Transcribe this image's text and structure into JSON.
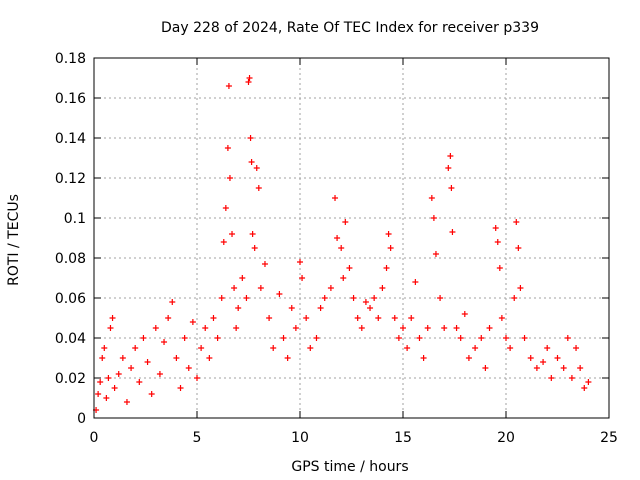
{
  "chart_data": {
    "type": "scatter",
    "title": "Day 228 of 2024, Rate Of TEC Index for receiver p339",
    "xlabel": "GPS time / hours",
    "ylabel": "ROTI / TECUs",
    "xlim": [
      0,
      25
    ],
    "ylim": [
      0,
      0.18
    ],
    "x_ticks": [
      0,
      5,
      10,
      15,
      20,
      25
    ],
    "y_ticks": [
      0,
      0.02,
      0.04,
      0.06,
      0.08,
      0.1,
      0.12,
      0.14,
      0.16,
      0.18
    ],
    "x_tick_labels": [
      "0",
      "5",
      "10",
      "15",
      "20",
      "25"
    ],
    "y_tick_labels": [
      "0",
      "0.02",
      "0.04",
      "0.06",
      "0.08",
      "0.1",
      "0.12",
      "0.14",
      "0.16",
      "0.18"
    ],
    "grid": true,
    "marker": "plus",
    "color": "#ff0000",
    "series": [
      {
        "points": [
          [
            0.1,
            0.004
          ],
          [
            0.2,
            0.012
          ],
          [
            0.3,
            0.018
          ],
          [
            0.4,
            0.03
          ],
          [
            0.5,
            0.035
          ],
          [
            0.6,
            0.01
          ],
          [
            0.7,
            0.02
          ],
          [
            0.8,
            0.045
          ],
          [
            0.9,
            0.05
          ],
          [
            1.0,
            0.015
          ],
          [
            1.2,
            0.022
          ],
          [
            1.4,
            0.03
          ],
          [
            1.6,
            0.008
          ],
          [
            1.8,
            0.025
          ],
          [
            2.0,
            0.035
          ],
          [
            2.2,
            0.018
          ],
          [
            2.4,
            0.04
          ],
          [
            2.6,
            0.028
          ],
          [
            2.8,
            0.012
          ],
          [
            3.0,
            0.045
          ],
          [
            3.2,
            0.022
          ],
          [
            3.4,
            0.038
          ],
          [
            3.6,
            0.05
          ],
          [
            3.8,
            0.058
          ],
          [
            4.0,
            0.03
          ],
          [
            4.2,
            0.015
          ],
          [
            4.4,
            0.04
          ],
          [
            4.6,
            0.025
          ],
          [
            4.8,
            0.048
          ],
          [
            5.0,
            0.02
          ],
          [
            5.2,
            0.035
          ],
          [
            5.4,
            0.045
          ],
          [
            5.6,
            0.03
          ],
          [
            5.8,
            0.05
          ],
          [
            6.0,
            0.04
          ],
          [
            6.2,
            0.06
          ],
          [
            6.3,
            0.088
          ],
          [
            6.4,
            0.105
          ],
          [
            6.5,
            0.135
          ],
          [
            6.55,
            0.166
          ],
          [
            6.6,
            0.12
          ],
          [
            6.7,
            0.092
          ],
          [
            6.8,
            0.065
          ],
          [
            6.9,
            0.045
          ],
          [
            7.0,
            0.055
          ],
          [
            7.2,
            0.07
          ],
          [
            7.4,
            0.06
          ],
          [
            7.5,
            0.168
          ],
          [
            7.55,
            0.17
          ],
          [
            7.6,
            0.14
          ],
          [
            7.65,
            0.128
          ],
          [
            7.7,
            0.092
          ],
          [
            7.8,
            0.085
          ],
          [
            7.9,
            0.125
          ],
          [
            8.0,
            0.115
          ],
          [
            8.1,
            0.065
          ],
          [
            8.3,
            0.077
          ],
          [
            8.5,
            0.05
          ],
          [
            8.7,
            0.035
          ],
          [
            9.0,
            0.062
          ],
          [
            9.2,
            0.04
          ],
          [
            9.4,
            0.03
          ],
          [
            9.6,
            0.055
          ],
          [
            9.8,
            0.045
          ],
          [
            10.0,
            0.078
          ],
          [
            10.1,
            0.07
          ],
          [
            10.3,
            0.05
          ],
          [
            10.5,
            0.035
          ],
          [
            10.8,
            0.04
          ],
          [
            11.0,
            0.055
          ],
          [
            11.2,
            0.06
          ],
          [
            11.5,
            0.065
          ],
          [
            11.7,
            0.11
          ],
          [
            11.8,
            0.09
          ],
          [
            12.0,
            0.085
          ],
          [
            12.1,
            0.07
          ],
          [
            12.2,
            0.098
          ],
          [
            12.4,
            0.075
          ],
          [
            12.6,
            0.06
          ],
          [
            12.8,
            0.05
          ],
          [
            13.0,
            0.045
          ],
          [
            13.2,
            0.058
          ],
          [
            13.4,
            0.055
          ],
          [
            13.6,
            0.06
          ],
          [
            13.8,
            0.05
          ],
          [
            14.0,
            0.065
          ],
          [
            14.2,
            0.075
          ],
          [
            14.3,
            0.092
          ],
          [
            14.4,
            0.085
          ],
          [
            14.6,
            0.05
          ],
          [
            14.8,
            0.04
          ],
          [
            15.0,
            0.045
          ],
          [
            15.2,
            0.035
          ],
          [
            15.4,
            0.05
          ],
          [
            15.6,
            0.068
          ],
          [
            15.8,
            0.04
          ],
          [
            16.0,
            0.03
          ],
          [
            16.2,
            0.045
          ],
          [
            16.4,
            0.11
          ],
          [
            16.5,
            0.1
          ],
          [
            16.6,
            0.082
          ],
          [
            16.8,
            0.06
          ],
          [
            17.0,
            0.045
          ],
          [
            17.2,
            0.125
          ],
          [
            17.3,
            0.131
          ],
          [
            17.35,
            0.115
          ],
          [
            17.4,
            0.093
          ],
          [
            17.6,
            0.045
          ],
          [
            17.8,
            0.04
          ],
          [
            18.0,
            0.052
          ],
          [
            18.2,
            0.03
          ],
          [
            18.5,
            0.035
          ],
          [
            18.8,
            0.04
          ],
          [
            19.0,
            0.025
          ],
          [
            19.2,
            0.045
          ],
          [
            19.5,
            0.095
          ],
          [
            19.6,
            0.088
          ],
          [
            19.7,
            0.075
          ],
          [
            19.8,
            0.05
          ],
          [
            20.0,
            0.04
          ],
          [
            20.2,
            0.035
          ],
          [
            20.4,
            0.06
          ],
          [
            20.5,
            0.098
          ],
          [
            20.6,
            0.085
          ],
          [
            20.7,
            0.065
          ],
          [
            20.9,
            0.04
          ],
          [
            21.2,
            0.03
          ],
          [
            21.5,
            0.025
          ],
          [
            21.8,
            0.028
          ],
          [
            22.0,
            0.035
          ],
          [
            22.2,
            0.02
          ],
          [
            22.5,
            0.03
          ],
          [
            22.8,
            0.025
          ],
          [
            23.0,
            0.04
          ],
          [
            23.2,
            0.02
          ],
          [
            23.4,
            0.035
          ],
          [
            23.6,
            0.025
          ],
          [
            23.8,
            0.015
          ],
          [
            24.0,
            0.018
          ]
        ]
      }
    ]
  }
}
